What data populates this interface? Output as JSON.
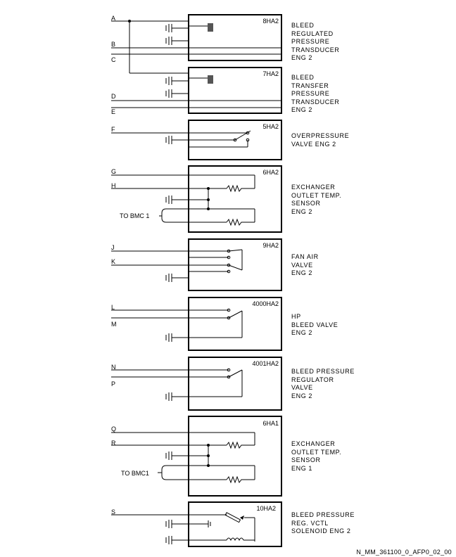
{
  "figure_code": "N_MM_361100_0_AFP0_02_00",
  "bmc_labels": [
    "TO BMC 1",
    "TO BMC1"
  ],
  "components": [
    {
      "code": "8HA2",
      "desc": [
        "BLEED",
        "REGULATED",
        "PRESSURE",
        "TRANSDUCER",
        "ENG 2"
      ],
      "signals": [
        "A",
        "B",
        "C"
      ]
    },
    {
      "code": "7HA2",
      "desc": [
        "BLEED",
        "TRANSFER",
        "PRESSURE",
        "TRANSDUCER",
        "ENG 2"
      ],
      "signals": [
        "D",
        "E"
      ]
    },
    {
      "code": "5HA2",
      "desc": [
        "OVERPRESSURE",
        "VALVE ENG 2"
      ],
      "signals": [
        "F"
      ]
    },
    {
      "code": "6HA2",
      "desc": [
        "EXCHANGER",
        "OUTLET TEMP.",
        "SENSOR",
        "ENG 2"
      ],
      "signals": [
        "G",
        "H"
      ]
    },
    {
      "code": "9HA2",
      "desc": [
        "FAN AIR",
        "VALVE",
        "ENG 2"
      ],
      "signals": [
        "J",
        "K"
      ]
    },
    {
      "code": "4000HA2",
      "desc": [
        "HP",
        "BLEED VALVE",
        "ENG 2"
      ],
      "signals": [
        "L",
        "M"
      ]
    },
    {
      "code": "4001HA2",
      "desc": [
        "BLEED PRESSURE",
        "REGULATOR",
        "VALVE",
        "ENG 2"
      ],
      "signals": [
        "N",
        "P"
      ]
    },
    {
      "code": "6HA1",
      "desc": [
        "EXCHANGER",
        "OUTLET TEMP.",
        "SENSOR",
        "ENG 1"
      ],
      "signals": [
        "Q",
        "R"
      ]
    },
    {
      "code": "10HA2",
      "desc": [
        "BLEED PRESSURE",
        "REG. VCTL",
        "SOLENOID ENG 2"
      ],
      "signals": [
        "S"
      ]
    }
  ]
}
